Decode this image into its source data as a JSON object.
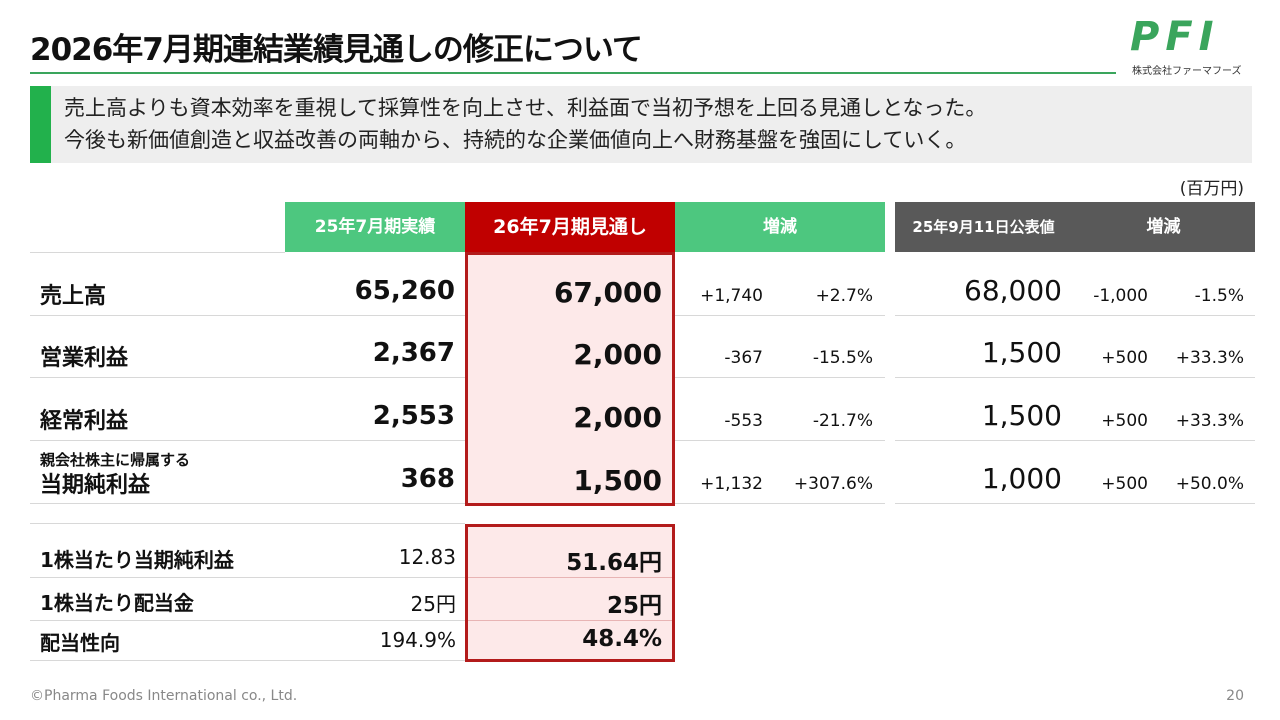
{
  "header": {
    "title": "2026年7月期連結業績見通しの修正について",
    "logo": "PFI",
    "logo_sub": "株式会社ファーマフーズ"
  },
  "summary": [
    "売上高よりも資本効率を重視して採算性を向上させ、利益面で当初予想を上回る見通しとなった。",
    "今後も新価値創造と収益改善の両軸から、持続的な企業価値向上へ財務基盤を強固にしていく。"
  ],
  "unit": "(百万円)",
  "table": {
    "headers": [
      "25年7月期実績",
      "26年7月期見通し",
      "増減",
      "25年9月11日公表値",
      "増減"
    ],
    "rows": [
      {
        "label": "売上高",
        "cells": [
          "65,260",
          "67,000",
          "+1,740",
          "+2.7%",
          "68,000",
          "-1,000",
          "-1.5%"
        ]
      },
      {
        "label": "営業利益",
        "cells": [
          "2,367",
          "2,000",
          "-367",
          "-15.5%",
          "1,500",
          "+500",
          "+33.3%"
        ]
      },
      {
        "label": "経常利益",
        "cells": [
          "2,553",
          "2,000",
          "-553",
          "-21.7%",
          "1,500",
          "+500",
          "+33.3%"
        ]
      },
      {
        "prefix": "親会社株主に帰属する",
        "label": "当期純利益",
        "cells": [
          "368",
          "1,500",
          "+1,132",
          "+307.6%",
          "1,000",
          "+500",
          "+50.0%"
        ]
      }
    ]
  },
  "per_share": {
    "rows": [
      {
        "label": "1株当たり当期純利益",
        "actual": "12.83",
        "forecast": "51.64円"
      },
      {
        "label": "1株当たり配当金",
        "actual": "25円",
        "forecast": "25円"
      },
      {
        "label": "配当性向",
        "actual": "194.9%",
        "forecast": "48.4%"
      }
    ]
  },
  "footer": {
    "copyright": "©Pharma Foods International co., Ltd.",
    "page": "20"
  }
}
